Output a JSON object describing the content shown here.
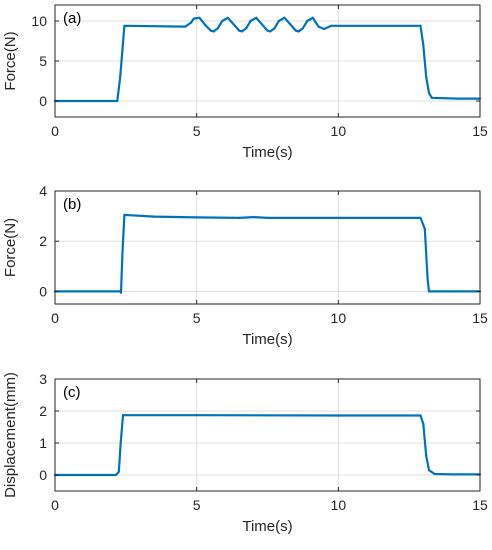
{
  "colors": {
    "series": "#0072BD",
    "axis": "#262626",
    "grid": "#dfdfdf"
  },
  "chart_data": [
    {
      "type": "line",
      "panel_label": "(a)",
      "xlabel": "Time(s)",
      "ylabel": "Force(N)",
      "xlim": [
        0,
        15
      ],
      "ylim": [
        -2,
        12
      ],
      "xticks": [
        0,
        5,
        10,
        15
      ],
      "yticks": [
        0,
        5,
        10
      ],
      "grid": true,
      "series": [
        {
          "x": [
            0,
            2.2,
            2.3,
            2.45,
            4.6,
            4.8,
            4.9,
            5.1,
            5.3,
            5.5,
            5.6,
            5.75,
            5.9,
            6.1,
            6.3,
            6.5,
            6.6,
            6.75,
            6.9,
            7.1,
            7.3,
            7.5,
            7.6,
            7.75,
            7.9,
            8.1,
            8.3,
            8.5,
            8.6,
            8.75,
            8.9,
            9.1,
            9.3,
            9.5,
            9.75,
            12.9,
            13.0,
            13.1,
            13.2,
            13.3,
            14.2,
            15
          ],
          "y": [
            0,
            0,
            3,
            9.4,
            9.3,
            9.8,
            10.3,
            10.4,
            9.5,
            8.8,
            8.7,
            9.1,
            10.0,
            10.4,
            9.6,
            8.8,
            8.7,
            9.1,
            10.0,
            10.4,
            9.6,
            8.8,
            8.7,
            9.1,
            10.0,
            10.4,
            9.6,
            8.8,
            8.7,
            9.1,
            10.0,
            10.4,
            9.3,
            9.0,
            9.4,
            9.4,
            7.0,
            3.0,
            1.0,
            0.4,
            0.3,
            0.3
          ]
        }
      ]
    },
    {
      "type": "line",
      "panel_label": "(b)",
      "xlabel": "Time(s)",
      "ylabel": "Force(N)",
      "xlim": [
        0,
        15
      ],
      "ylim": [
        -0.5,
        4
      ],
      "xticks": [
        0,
        5,
        10,
        15
      ],
      "yticks": [
        0,
        2,
        4
      ],
      "grid": true,
      "series": [
        {
          "x": [
            0,
            2.3,
            2.33,
            2.38,
            2.45,
            3.5,
            5.0,
            6.5,
            7.0,
            7.5,
            8.5,
            10.0,
            12.9,
            13.05,
            13.15,
            13.2,
            14.0,
            15
          ],
          "y": [
            0,
            0,
            -0.05,
            1.5,
            3.05,
            2.98,
            2.95,
            2.93,
            2.96,
            2.93,
            2.93,
            2.93,
            2.93,
            2.5,
            0.5,
            0,
            0,
            0
          ]
        }
      ]
    },
    {
      "type": "line",
      "panel_label": "(c)",
      "xlabel": "Time(s)",
      "ylabel": "Displacement(mm)",
      "xlim": [
        0,
        15
      ],
      "ylim": [
        -0.5,
        3
      ],
      "xticks": [
        0,
        5,
        10,
        15
      ],
      "yticks": [
        0,
        1,
        2,
        3
      ],
      "grid": true,
      "series": [
        {
          "x": [
            0,
            2.15,
            2.25,
            2.32,
            2.4,
            5.0,
            10.0,
            12.9,
            13.0,
            13.1,
            13.2,
            13.4,
            14.0,
            15
          ],
          "y": [
            0,
            0,
            0.1,
            1.0,
            1.87,
            1.87,
            1.86,
            1.86,
            1.6,
            0.6,
            0.15,
            0.03,
            0.02,
            0.02
          ]
        }
      ]
    }
  ]
}
